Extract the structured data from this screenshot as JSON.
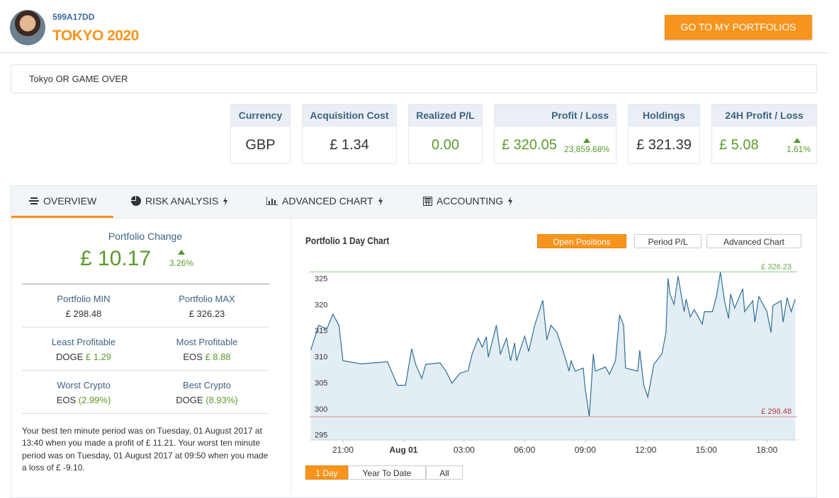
{
  "header": {
    "account_id": "599A17DD",
    "portfolio_name": "TOKYO 2020",
    "button": "GO TO MY PORTFOLIOS"
  },
  "description": "Tokyo OR GAME OVER",
  "stats": [
    {
      "label": "Currency",
      "value": "GBP"
    },
    {
      "label": "Acquisition Cost",
      "value": "£ 1.34"
    },
    {
      "label": "Realized P/L",
      "value": "0.00"
    },
    {
      "label": "Profit / Loss",
      "value": "£ 320.05",
      "change": "23,859.68%"
    },
    {
      "label": "Holdings",
      "value": "£ 321.39"
    },
    {
      "label": "24H Profit / Loss",
      "value": "£ 5.08",
      "change": "1.61%"
    }
  ],
  "tabs": [
    "OVERVIEW",
    "RISK ANALYSIS",
    "ADVANCED CHART",
    "ACCOUNTING"
  ],
  "overview": {
    "change_label": "Portfolio Change",
    "change_value": "£ 10.17",
    "change_percent": "3.26%",
    "rows": [
      [
        {
          "label": "Portfolio MIN",
          "value": "£ 298.48"
        },
        {
          "label": "Portfolio MAX",
          "value": "£ 326.23"
        }
      ],
      [
        {
          "label": "Least Profitable",
          "coin": "DOGE",
          "value": "£ 1.29"
        },
        {
          "label": "Most Profitable",
          "coin": "EOS",
          "value": "£ 8.88"
        }
      ],
      [
        {
          "label": "Worst Crypto",
          "coin": "EOS",
          "value": "(2.99%)"
        },
        {
          "label": "Best Crypto",
          "coin": "DOGE",
          "value": "(8.93%)"
        }
      ]
    ],
    "summary": "Your best ten minute period was on Tuesday, 01 August 2017 at 13:40 when you made a profit of £ 11.21. Your worst ten minute period was on Tuesday, 01 August 2017 at 09:50 when you made a loss of £ -9.10."
  },
  "chart_buttons": [
    "Open Positions",
    "Period P/L",
    "Advanced Chart"
  ],
  "range_buttons": [
    "1 Day",
    "Year To Date",
    "All"
  ],
  "chart_data": {
    "type": "area",
    "title": "Portfolio 1 Day Chart",
    "color": "#2e6f96",
    "fill": "#e3edf4",
    "x": [
      19.4,
      19.8,
      20.2,
      20.5,
      20.8,
      21.0,
      21.9,
      23.2,
      23.4,
      23.7,
      24.1,
      24.4,
      24.6,
      24.9,
      25.1,
      25.8,
      26.1,
      26.4,
      26.8,
      27.2,
      27.4,
      27.7,
      27.9,
      28.1,
      28.2,
      28.6,
      28.8,
      29.1,
      29.3,
      29.5,
      29.6,
      30.0,
      30.2,
      30.5,
      30.9,
      31.1,
      31.3,
      31.6,
      32.0,
      32.2,
      32.3,
      32.5,
      32.9,
      33.0,
      33.2,
      33.4,
      33.5,
      34.0,
      34.2,
      34.5,
      34.7,
      34.9,
      35.0,
      35.6,
      35.7,
      35.9,
      36.1,
      36.4,
      36.8,
      37.0,
      37.1,
      37.2,
      37.4,
      37.6,
      37.9,
      38.0,
      38.2,
      38.4,
      38.8,
      38.9,
      39.3,
      39.5,
      39.7,
      39.9,
      40.1,
      40.2,
      40.4,
      40.8,
      40.9,
      41.3,
      41.4,
      41.6,
      42.0,
      42.2,
      42.3,
      42.7,
      42.8,
      43.0,
      43.2,
      43.4
    ],
    "values": [
      311.2,
      316.0,
      315.3,
      318.1,
      316.0,
      309.2,
      308.6,
      309.0,
      307.2,
      304.5,
      304.5,
      311.5,
      308.5,
      305.8,
      308.5,
      308.8,
      307.2,
      304.9,
      306.8,
      307.3,
      310.5,
      313.5,
      311.8,
      313.8,
      309.9,
      316.0,
      310.5,
      313.5,
      309.2,
      312.6,
      309.2,
      313.9,
      311.0,
      316.0,
      320.8,
      313.2,
      316.0,
      314.6,
      309.9,
      307.2,
      309.2,
      307.2,
      307.8,
      303.8,
      298.48,
      310.5,
      307.2,
      308.0,
      306.6,
      309.2,
      318.0,
      316.0,
      307.8,
      307.2,
      311.2,
      304.5,
      302.2,
      308.5,
      310.5,
      314.6,
      325.0,
      322.0,
      320.0,
      325.4,
      318.6,
      321.0,
      317.6,
      319.0,
      316.2,
      318.6,
      318.6,
      321.5,
      326.23,
      320.7,
      317.3,
      322.0,
      319.3,
      323.0,
      318.6,
      320.7,
      316.6,
      321.5,
      318.6,
      314.6,
      319.8,
      320.7,
      316.6,
      321.3,
      318.6,
      321.0
    ],
    "xlim": [
      19.35,
      43.5
    ],
    "xticks": [
      {
        "value": 21,
        "label": "21:00"
      },
      {
        "value": 24,
        "label": "Aug 01"
      },
      {
        "value": 27,
        "label": "03:00"
      },
      {
        "value": 30,
        "label": "06:00"
      },
      {
        "value": 33,
        "label": "09:00"
      },
      {
        "value": 36,
        "label": "12:00"
      },
      {
        "value": 39,
        "label": "15:00"
      },
      {
        "value": 42,
        "label": "18:00"
      }
    ],
    "ylim": [
      294,
      327.5
    ],
    "yticks": [
      295,
      300,
      305,
      310,
      315,
      320,
      325
    ],
    "grid": false,
    "reference_lines": [
      {
        "value": 326.23,
        "label": "£ 326.23",
        "color": "#a9d79c",
        "text_color": "#6aa84f"
      },
      {
        "value": 298.48,
        "label": "£ 298.48",
        "color": "#d9a3a3",
        "text_color": "#b03a3a"
      }
    ]
  }
}
